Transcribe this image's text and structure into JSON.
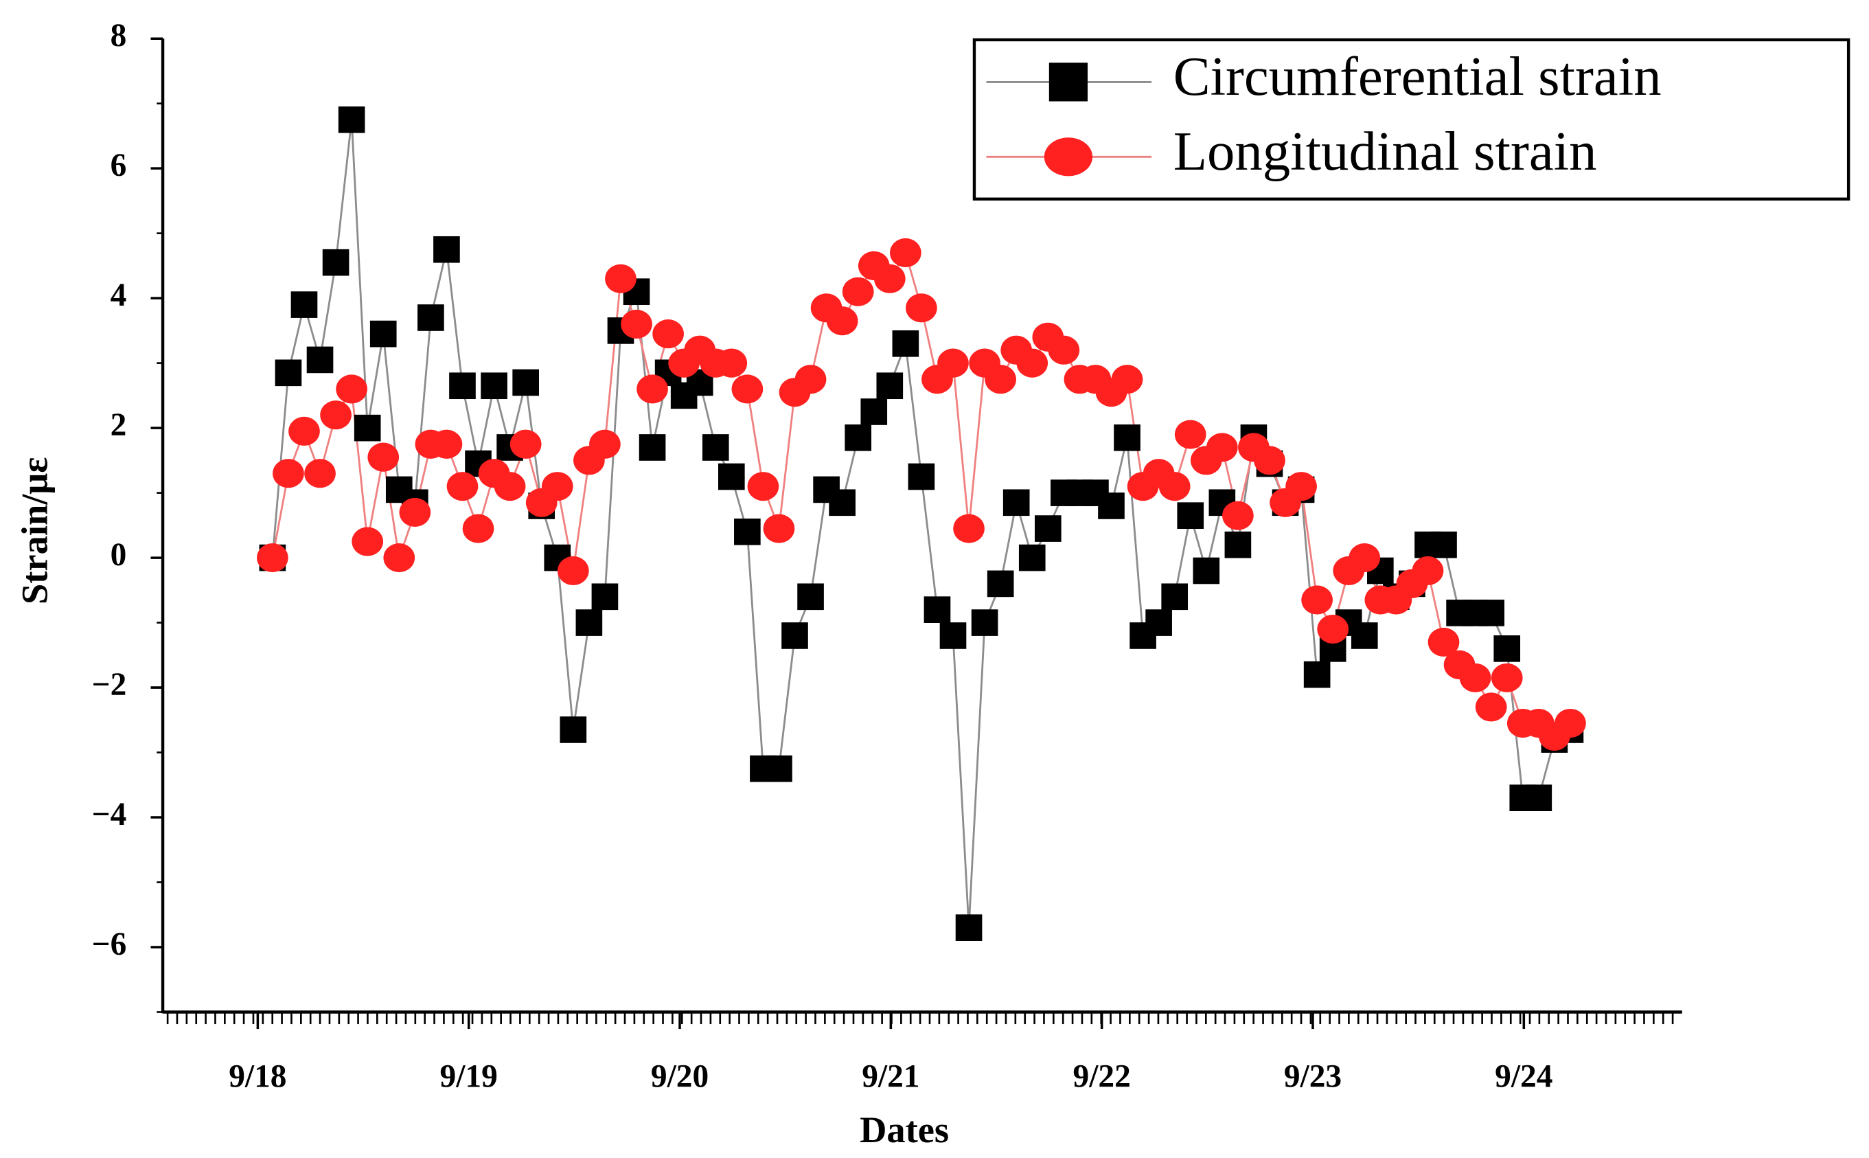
{
  "chart_data": {
    "type": "line",
    "xlabel": "Dates",
    "ylabel": "Strain/με",
    "x": [
      0.07,
      0.145,
      0.22,
      0.295,
      0.37,
      0.445,
      0.52,
      0.595,
      0.67,
      0.745,
      0.82,
      0.895,
      0.97,
      1.045,
      1.12,
      1.195,
      1.27,
      1.345,
      1.42,
      1.495,
      1.57,
      1.645,
      1.72,
      1.795,
      1.87,
      1.945,
      2.02,
      2.095,
      2.17,
      2.245,
      2.32,
      2.395,
      2.47,
      2.545,
      2.62,
      2.695,
      2.77,
      2.845,
      2.92,
      2.995,
      3.07,
      3.145,
      3.22,
      3.295,
      3.37,
      3.445,
      3.52,
      3.595,
      3.67,
      3.745,
      3.82,
      3.895,
      3.97,
      4.045,
      4.12,
      4.195,
      4.27,
      4.345,
      4.42,
      4.495,
      4.57,
      4.645,
      4.72,
      4.795,
      4.87,
      4.945,
      5.02,
      5.095,
      5.17,
      5.245,
      5.32,
      5.395,
      5.47,
      5.545,
      5.62,
      5.695,
      5.77,
      5.845,
      5.92,
      5.995,
      6.07,
      6.145,
      6.22
    ],
    "series": [
      {
        "name": "Circumferential strain",
        "color": "#000000",
        "line_color": "#8c8c8c",
        "marker": "square",
        "values": [
          0,
          2.85,
          3.9,
          3.05,
          4.55,
          6.75,
          2.0,
          3.45,
          1.05,
          0.85,
          3.7,
          4.75,
          2.65,
          1.45,
          2.65,
          1.7,
          2.7,
          0.8,
          0,
          -2.65,
          -1.0,
          -0.6,
          3.5,
          4.1,
          1.7,
          2.85,
          2.5,
          2.7,
          1.7,
          1.25,
          0.4,
          -3.25,
          -3.25,
          -1.2,
          -0.6,
          1.05,
          0.85,
          1.85,
          2.25,
          2.65,
          3.3,
          1.25,
          -0.8,
          -1.2,
          -5.7,
          -1.0,
          -0.4,
          0.85,
          0.0,
          0.45,
          1.0,
          1.0,
          1.0,
          0.8,
          1.85,
          -1.2,
          -1.0,
          -0.6,
          0.65,
          -0.2,
          0.85,
          0.2,
          1.85,
          1.45,
          0.85,
          1.05,
          -1.8,
          -1.4,
          -1.0,
          -1.2,
          -0.2,
          -0.6,
          -0.4,
          0.2,
          0.2,
          -0.85,
          -0.85,
          -0.85,
          -1.4,
          -3.7,
          -3.7,
          -2.8,
          -2.65
        ]
      },
      {
        "name": "Longitudinal strain",
        "color": "#ff2020",
        "line_color": "#f08080",
        "marker": "circle",
        "values": [
          0,
          1.3,
          1.95,
          1.3,
          2.2,
          2.6,
          0.25,
          1.55,
          0.0,
          0.7,
          1.75,
          1.75,
          1.1,
          0.45,
          1.3,
          1.1,
          1.75,
          0.85,
          1.1,
          -0.2,
          1.5,
          1.75,
          4.3,
          3.6,
          2.6,
          3.45,
          3.0,
          3.2,
          3.0,
          3.0,
          2.6,
          1.1,
          0.45,
          2.55,
          2.75,
          3.85,
          3.65,
          4.1,
          4.5,
          4.3,
          4.7,
          3.85,
          2.75,
          3.0,
          0.45,
          3.0,
          2.75,
          3.2,
          3.0,
          3.4,
          3.2,
          2.75,
          2.75,
          2.55,
          2.75,
          1.1,
          1.3,
          1.1,
          1.9,
          1.5,
          1.7,
          0.65,
          1.7,
          1.5,
          0.85,
          1.1,
          -0.65,
          -1.1,
          -0.2,
          0.0,
          -0.65,
          -0.65,
          -0.4,
          -0.2,
          -1.3,
          -1.65,
          -1.85,
          -2.3,
          -1.85,
          -2.55,
          -2.55,
          -2.75,
          -2.55
        ]
      }
    ],
    "xlim": [
      -0.45,
      6.75
    ],
    "xticks": [
      {
        "value": 0,
        "label": "9/18"
      },
      {
        "value": 1,
        "label": "9/19"
      },
      {
        "value": 2,
        "label": "9/20"
      },
      {
        "value": 3,
        "label": "9/21"
      },
      {
        "value": 4,
        "label": "9/22"
      },
      {
        "value": 5,
        "label": "9/23"
      },
      {
        "value": 6,
        "label": "9/24"
      }
    ],
    "ylim": [
      -7,
      8
    ],
    "yticks": [
      {
        "value": -6,
        "label": "−6"
      },
      {
        "value": -4,
        "label": "−4"
      },
      {
        "value": -2,
        "label": "−2"
      },
      0,
      2,
      4,
      6,
      8
    ],
    "legend": "upper right",
    "grid": false
  }
}
